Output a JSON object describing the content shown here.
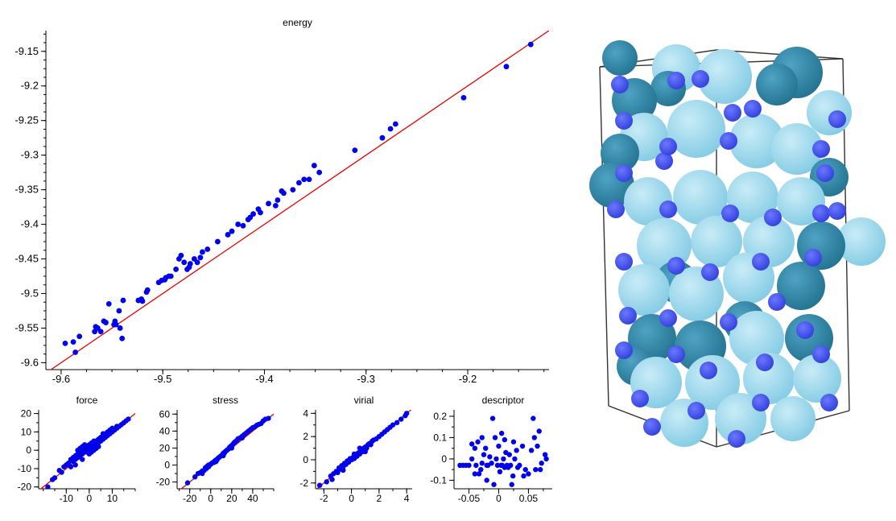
{
  "chart_data": [
    {
      "type": "scatter",
      "title": "energy",
      "xlim": [
        -9.615,
        -9.12
      ],
      "ylim": [
        -9.61,
        -9.12
      ],
      "xticks": [
        -9.6,
        -9.5,
        -9.4,
        -9.3,
        -9.2
      ],
      "xtick_labels": [
        "-9.6",
        "-9.5",
        "-9.4",
        "-9.3",
        "-9.2"
      ],
      "yticks": [
        -9.15,
        -9.2,
        -9.25,
        -9.3,
        -9.35,
        -9.4,
        -9.45,
        -9.5,
        -9.55,
        -9.6
      ],
      "ytick_labels": [
        "-9.15",
        "-9.2",
        "-9.25",
        "-9.3",
        "-9.35",
        "-9.4",
        "-9.45",
        "-9.5",
        "-9.55",
        "-9.6"
      ],
      "reference_line": "y = x",
      "colors": {
        "points": "#0000ee",
        "line": "#ee0000"
      },
      "points": [
        [
          -9.596,
          -9.572
        ],
        [
          -9.588,
          -9.57
        ],
        [
          -9.586,
          -9.585
        ],
        [
          -9.582,
          -9.562
        ],
        [
          -9.567,
          -9.555
        ],
        [
          -9.566,
          -9.548
        ],
        [
          -9.564,
          -9.55
        ],
        [
          -9.561,
          -9.555
        ],
        [
          -9.556,
          -9.542
        ],
        [
          -9.558,
          -9.54
        ],
        [
          -9.553,
          -9.515
        ],
        [
          -9.548,
          -9.545
        ],
        [
          -9.547,
          -9.54
        ],
        [
          -9.546,
          -9.545
        ],
        [
          -9.543,
          -9.525
        ],
        [
          -9.542,
          -9.55
        ],
        [
          -9.54,
          -9.565
        ],
        [
          -9.539,
          -9.51
        ],
        [
          -9.524,
          -9.51
        ],
        [
          -9.52,
          -9.511
        ],
        [
          -9.521,
          -9.508
        ],
        [
          -9.516,
          -9.498
        ],
        [
          -9.515,
          -9.495
        ],
        [
          -9.504,
          -9.484
        ],
        [
          -9.501,
          -9.481
        ],
        [
          -9.498,
          -9.48
        ],
        [
          -9.497,
          -9.477
        ],
        [
          -9.494,
          -9.475
        ],
        [
          -9.492,
          -9.475
        ],
        [
          -9.487,
          -9.465
        ],
        [
          -9.484,
          -9.45
        ],
        [
          -9.482,
          -9.445
        ],
        [
          -9.479,
          -9.455
        ],
        [
          -9.476,
          -9.465
        ],
        [
          -9.474,
          -9.462
        ],
        [
          -9.473,
          -9.457
        ],
        [
          -9.469,
          -9.45
        ],
        [
          -9.466,
          -9.455
        ],
        [
          -9.463,
          -9.448
        ],
        [
          -9.461,
          -9.44
        ],
        [
          -9.456,
          -9.436
        ],
        [
          -9.446,
          -9.425
        ],
        [
          -9.436,
          -9.415
        ],
        [
          -9.432,
          -9.41
        ],
        [
          -9.426,
          -9.4
        ],
        [
          -9.421,
          -9.402
        ],
        [
          -9.416,
          -9.393
        ],
        [
          -9.414,
          -9.39
        ],
        [
          -9.411,
          -9.385
        ],
        [
          -9.406,
          -9.378
        ],
        [
          -9.404,
          -9.383
        ],
        [
          -9.396,
          -9.37
        ],
        [
          -9.389,
          -9.373
        ],
        [
          -9.387,
          -9.365
        ],
        [
          -9.383,
          -9.352
        ],
        [
          -9.381,
          -9.355
        ],
        [
          -9.372,
          -9.35
        ],
        [
          -9.366,
          -9.34
        ],
        [
          -9.361,
          -9.335
        ],
        [
          -9.356,
          -9.335
        ],
        [
          -9.351,
          -9.315
        ],
        [
          -9.346,
          -9.325
        ],
        [
          -9.311,
          -9.293
        ],
        [
          -9.284,
          -9.275
        ],
        [
          -9.276,
          -9.262
        ],
        [
          -9.271,
          -9.255
        ],
        [
          -9.204,
          -9.217
        ],
        [
          -9.162,
          -9.172
        ],
        [
          -9.138,
          -9.14
        ]
      ]
    },
    {
      "type": "scatter",
      "title": "force",
      "xlim": [
        -22,
        20
      ],
      "ylim": [
        -21,
        22
      ],
      "xticks": [
        -10,
        0,
        10
      ],
      "xtick_labels": [
        "-10",
        "0",
        "10"
      ],
      "yticks": [
        20,
        10,
        0,
        -10,
        -20
      ],
      "ytick_labels": [
        "20",
        "10",
        "0",
        "-10",
        "-20"
      ],
      "reference_line": "y = x",
      "points": [
        [
          -18,
          -20
        ],
        [
          -16,
          -16
        ],
        [
          -15,
          -15
        ],
        [
          -13,
          -11
        ],
        [
          -12,
          -12
        ],
        [
          -11,
          -9
        ],
        [
          -10,
          -8
        ],
        [
          -9,
          -7
        ],
        [
          -8,
          -5
        ],
        [
          -8,
          -9
        ],
        [
          -7,
          -4
        ],
        [
          -7,
          -6
        ],
        [
          -6,
          -3
        ],
        [
          -6,
          -5
        ],
        [
          -5,
          -2
        ],
        [
          -5,
          -4
        ],
        [
          -5,
          0
        ],
        [
          -4,
          -1
        ],
        [
          -4,
          -3
        ],
        [
          -4,
          1
        ],
        [
          -3,
          2
        ],
        [
          -3,
          -2
        ],
        [
          -3,
          0
        ],
        [
          -2,
          -1
        ],
        [
          -2,
          1
        ],
        [
          -2,
          3
        ],
        [
          -1,
          0
        ],
        [
          -1,
          2
        ],
        [
          -1,
          -1
        ],
        [
          0,
          0
        ],
        [
          0,
          1
        ],
        [
          0,
          -2
        ],
        [
          0,
          3
        ],
        [
          1,
          1
        ],
        [
          1,
          2
        ],
        [
          1,
          -1
        ],
        [
          1,
          4
        ],
        [
          2,
          2
        ],
        [
          2,
          3
        ],
        [
          2,
          0
        ],
        [
          3,
          3
        ],
        [
          3,
          5
        ],
        [
          3,
          1
        ],
        [
          4,
          4
        ],
        [
          4,
          6
        ],
        [
          5,
          5
        ],
        [
          5,
          7
        ],
        [
          6,
          6
        ],
        [
          6,
          8
        ],
        [
          7,
          7
        ],
        [
          7,
          9
        ],
        [
          8,
          8
        ],
        [
          8,
          10
        ],
        [
          9,
          9
        ],
        [
          9,
          11
        ],
        [
          10,
          10
        ],
        [
          10,
          12
        ],
        [
          11,
          11
        ],
        [
          12,
          12
        ],
        [
          12,
          13
        ],
        [
          13,
          13
        ],
        [
          14,
          14
        ],
        [
          15,
          15
        ],
        [
          16,
          16
        ],
        [
          17,
          17
        ],
        [
          -6,
          -8
        ],
        [
          -3,
          -5
        ],
        [
          2,
          5
        ],
        [
          4,
          2
        ],
        [
          6,
          9
        ]
      ]
    },
    {
      "type": "scatter",
      "title": "stress",
      "xlim": [
        -32,
        60
      ],
      "ylim": [
        -28,
        65
      ],
      "xticks": [
        -20,
        0,
        20,
        40
      ],
      "xtick_labels": [
        "-20",
        "0",
        "20",
        "40"
      ],
      "yticks": [
        60,
        40,
        20,
        0,
        -20
      ],
      "ytick_labels": [
        "60",
        "40",
        "20",
        "0",
        "-20"
      ],
      "reference_line": "y = x",
      "points": [
        [
          -22,
          -21
        ],
        [
          -15,
          -14
        ],
        [
          -12,
          -10
        ],
        [
          -10,
          -9
        ],
        [
          -8,
          -7
        ],
        [
          -6,
          -6
        ],
        [
          -5,
          -3
        ],
        [
          -4,
          -4
        ],
        [
          -3,
          -1
        ],
        [
          -2,
          -2
        ],
        [
          -1,
          0
        ],
        [
          0,
          1
        ],
        [
          1,
          2
        ],
        [
          2,
          3
        ],
        [
          3,
          3
        ],
        [
          4,
          5
        ],
        [
          5,
          6
        ],
        [
          6,
          6
        ],
        [
          7,
          8
        ],
        [
          8,
          9
        ],
        [
          9,
          10
        ],
        [
          10,
          11
        ],
        [
          11,
          12
        ],
        [
          12,
          14
        ],
        [
          13,
          14
        ],
        [
          14,
          16
        ],
        [
          15,
          17
        ],
        [
          16,
          18
        ],
        [
          17,
          19
        ],
        [
          18,
          21
        ],
        [
          19,
          22
        ],
        [
          20,
          23
        ],
        [
          21,
          24
        ],
        [
          22,
          26
        ],
        [
          23,
          27
        ],
        [
          24,
          28
        ],
        [
          25,
          29
        ],
        [
          26,
          31
        ],
        [
          28,
          32
        ],
        [
          30,
          34
        ],
        [
          32,
          36
        ],
        [
          34,
          38
        ],
        [
          36,
          40
        ],
        [
          38,
          42
        ],
        [
          40,
          44
        ],
        [
          42,
          45
        ],
        [
          44,
          47
        ],
        [
          46,
          48
        ],
        [
          48,
          49
        ],
        [
          50,
          52
        ],
        [
          52,
          54
        ],
        [
          55,
          55
        ],
        [
          -8,
          -10
        ],
        [
          -2,
          0
        ],
        [
          5,
          4
        ],
        [
          12,
          11
        ],
        [
          20,
          20
        ],
        [
          30,
          32
        ]
      ]
    },
    {
      "type": "scatter",
      "title": "virial",
      "xlim": [
        -2.6,
        4.4
      ],
      "ylim": [
        -2.5,
        4.3
      ],
      "xticks": [
        -2,
        0,
        2,
        4
      ],
      "xtick_labels": [
        "-2",
        "0",
        "2",
        "4"
      ],
      "yticks": [
        4,
        2,
        0,
        -2
      ],
      "ytick_labels": [
        "4",
        "2",
        "0",
        "-2"
      ],
      "reference_line": "y = x",
      "points": [
        [
          -2.3,
          -2.2
        ],
        [
          -1.8,
          -1.9
        ],
        [
          -1.5,
          -1.4
        ],
        [
          -1.3,
          -1.2
        ],
        [
          -1.1,
          -1.0
        ],
        [
          -1.0,
          -1.1
        ],
        [
          -0.9,
          -0.7
        ],
        [
          -0.8,
          -0.8
        ],
        [
          -0.7,
          -0.5
        ],
        [
          -0.6,
          -0.6
        ],
        [
          -0.5,
          -0.3
        ],
        [
          -0.4,
          -0.4
        ],
        [
          -0.3,
          -0.1
        ],
        [
          -0.2,
          -0.2
        ],
        [
          -0.1,
          0.1
        ],
        [
          0.0,
          0.0
        ],
        [
          0.1,
          0.2
        ],
        [
          0.2,
          0.1
        ],
        [
          0.3,
          0.4
        ],
        [
          0.4,
          0.3
        ],
        [
          0.5,
          0.6
        ],
        [
          0.6,
          0.5
        ],
        [
          0.7,
          0.8
        ],
        [
          0.8,
          0.7
        ],
        [
          0.9,
          1.0
        ],
        [
          1.0,
          1.1
        ],
        [
          1.1,
          1.0
        ],
        [
          1.2,
          1.3
        ],
        [
          1.3,
          1.4
        ],
        [
          1.4,
          1.3
        ],
        [
          1.5,
          1.6
        ],
        [
          1.6,
          1.7
        ],
        [
          1.8,
          1.8
        ],
        [
          2.0,
          2.0
        ],
        [
          2.2,
          2.2
        ],
        [
          2.4,
          2.4
        ],
        [
          2.6,
          2.6
        ],
        [
          2.8,
          2.8
        ],
        [
          3.0,
          3.0
        ],
        [
          3.3,
          3.2
        ],
        [
          3.6,
          3.5
        ],
        [
          3.9,
          3.8
        ],
        [
          4.0,
          4.0
        ],
        [
          -0.6,
          -0.9
        ],
        [
          0.2,
          0.5
        ],
        [
          1.0,
          0.7
        ],
        [
          -1.4,
          -1.7
        ],
        [
          0.6,
          1.0
        ]
      ]
    },
    {
      "type": "scatter",
      "title": "descriptor",
      "xlim": [
        -0.075,
        0.09
      ],
      "ylim": [
        -0.14,
        0.23
      ],
      "xticks": [
        -0.05,
        0,
        0.05
      ],
      "xtick_labels": [
        "-0.05",
        "0",
        "0.05"
      ],
      "yticks": [
        0.2,
        0.1,
        0,
        -0.1
      ],
      "ytick_labels": [
        "0.2",
        "0.1",
        "0",
        "-0.1"
      ],
      "reference_line": "none",
      "points": [
        [
          -0.065,
          -0.03
        ],
        [
          -0.06,
          -0.03
        ],
        [
          -0.055,
          -0.03
        ],
        [
          -0.05,
          -0.03
        ],
        [
          -0.045,
          0.07
        ],
        [
          -0.045,
          0.0
        ],
        [
          -0.04,
          0.05
        ],
        [
          -0.04,
          -0.07
        ],
        [
          -0.038,
          -0.03
        ],
        [
          -0.035,
          0.08
        ],
        [
          -0.033,
          -0.07
        ],
        [
          -0.03,
          -0.05
        ],
        [
          -0.028,
          -0.02
        ],
        [
          -0.025,
          0.02
        ],
        [
          -0.022,
          0.05
        ],
        [
          -0.02,
          -0.03
        ],
        [
          -0.018,
          -0.03
        ],
        [
          -0.015,
          0.01
        ],
        [
          -0.012,
          -0.02
        ],
        [
          -0.01,
          0.19
        ],
        [
          -0.008,
          -0.12
        ],
        [
          -0.006,
          0.1
        ],
        [
          -0.004,
          0.0
        ],
        [
          -0.002,
          -0.03
        ],
        [
          0.0,
          0.06
        ],
        [
          0.002,
          -0.06
        ],
        [
          0.004,
          -0.03
        ],
        [
          0.005,
          0.12
        ],
        [
          0.006,
          -0.03
        ],
        [
          0.008,
          0.0
        ],
        [
          0.01,
          -0.04
        ],
        [
          0.012,
          0.03
        ],
        [
          0.014,
          -0.03
        ],
        [
          0.016,
          -0.04
        ],
        [
          0.018,
          0.02
        ],
        [
          0.02,
          -0.03
        ],
        [
          0.022,
          -0.12
        ],
        [
          0.024,
          -0.08
        ],
        [
          0.025,
          0.08
        ],
        [
          0.027,
          0.0
        ],
        [
          0.03,
          0.04
        ],
        [
          0.032,
          -0.04
        ],
        [
          0.035,
          -0.03
        ],
        [
          0.04,
          0.06
        ],
        [
          0.042,
          -0.08
        ],
        [
          0.045,
          -0.05
        ],
        [
          0.05,
          -0.07
        ],
        [
          0.055,
          0.04
        ],
        [
          0.058,
          0.19
        ],
        [
          0.06,
          0.1
        ],
        [
          0.062,
          -0.05
        ],
        [
          0.065,
          0.06
        ],
        [
          0.068,
          0.13
        ],
        [
          0.07,
          -0.05
        ],
        [
          0.072,
          -0.02
        ],
        [
          0.078,
          0.02
        ],
        [
          0.08,
          0.0
        ],
        [
          -0.02,
          -0.1
        ],
        [
          0.01,
          0.09
        ],
        [
          -0.028,
          0.1
        ]
      ]
    }
  ],
  "structure_view": {
    "colors": {
      "large_light": "#7ec8e3",
      "large_dark": "#1f6e8c",
      "small": "#2d3bd8",
      "box": "#333333"
    }
  }
}
